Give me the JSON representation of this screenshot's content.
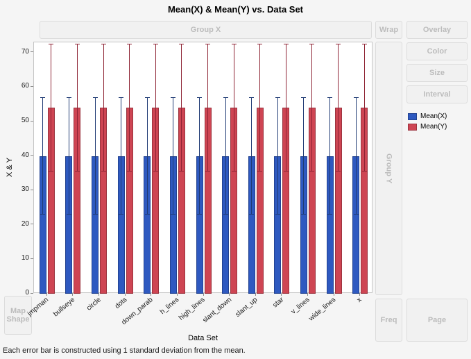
{
  "drop_zones": {
    "group_x": "Group X",
    "wrap": "Wrap",
    "overlay": "Overlay",
    "color": "Color",
    "size": "Size",
    "interval": "Interval",
    "group_y": "Group Y",
    "map_shape": "Map Shape",
    "freq": "Freq",
    "page": "Page"
  },
  "legend": {
    "items": [
      {
        "label": "Mean(X)",
        "color": "#2e59c0"
      },
      {
        "label": "Mean(Y)",
        "color": "#ce4553"
      }
    ]
  },
  "footnote": "Each error bar is constructed using 1 standard deviation from the mean.",
  "chart_data": {
    "type": "bar",
    "title": "Mean(X) & Mean(Y) vs. Data Set",
    "xlabel": "Data Set",
    "ylabel": "X & Y",
    "ylim": [
      0,
      73
    ],
    "yticks": [
      0,
      10,
      20,
      30,
      40,
      50,
      60,
      70
    ],
    "grid": false,
    "legend_position": "right",
    "error_bars": "1 standard deviation from the mean",
    "categories": [
      "jmpman",
      "bullseye",
      "circle",
      "dots",
      "down_parab",
      "h_lines",
      "high_lines",
      "slant_down",
      "slant_up",
      "star",
      "v_lines",
      "wide_lines",
      "x"
    ],
    "series": [
      {
        "name": "Mean(X)",
        "color": "#2e59c0",
        "error_color": "#1f3a74",
        "values": [
          40,
          40,
          40,
          40,
          40,
          40,
          40,
          40,
          40,
          40,
          40,
          40,
          40
        ],
        "errors": [
          17,
          17,
          17,
          17,
          17,
          17,
          17,
          17,
          17,
          17,
          17,
          17,
          17
        ]
      },
      {
        "name": "Mean(Y)",
        "color": "#ce4553",
        "error_color": "#8e2434",
        "values": [
          54,
          54,
          54,
          54,
          54,
          54,
          54,
          54,
          54,
          54,
          54,
          54,
          54
        ],
        "errors": [
          18.5,
          18.5,
          18.5,
          18.5,
          18.5,
          18.5,
          18.5,
          18.5,
          18.5,
          18.5,
          18.5,
          18.5,
          18.5
        ]
      }
    ]
  }
}
